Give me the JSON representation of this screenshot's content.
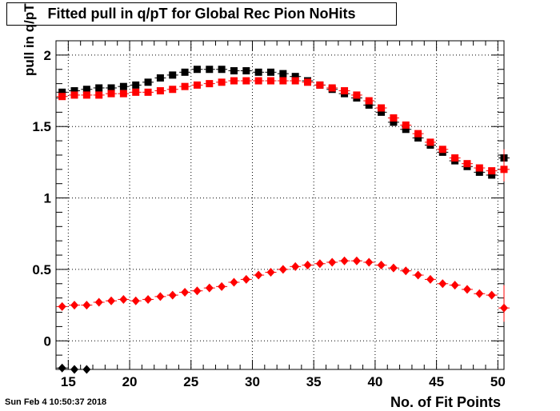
{
  "chart_data": {
    "type": "scatter",
    "title": "Fitted pull in q/pT for Global Rec Pion NoHits",
    "xlabel": "No. of Fit Points",
    "ylabel": "pull in q/pT",
    "xlim": [
      14,
      50.5
    ],
    "ylim": [
      -0.2,
      2.1
    ],
    "xticks": [
      15,
      20,
      25,
      30,
      35,
      40,
      45,
      50
    ],
    "yticks": [
      0,
      0.5,
      1,
      1.5,
      2
    ],
    "grid": true,
    "series": [
      {
        "color": "#000000",
        "marker": "square",
        "x": [
          14.5,
          15.5,
          16.5,
          17.5,
          18.5,
          19.5,
          20.5,
          21.5,
          22.5,
          23.5,
          24.5,
          25.5,
          26.5,
          27.5,
          28.5,
          29.5,
          30.5,
          31.5,
          32.5,
          33.5,
          34.5,
          35.5,
          36.5,
          37.5,
          38.5,
          39.5,
          40.5,
          41.5,
          42.5,
          43.5,
          44.5,
          45.5,
          46.5,
          47.5,
          48.5,
          49.5,
          50.5
        ],
        "y": [
          1.74,
          1.75,
          1.76,
          1.77,
          1.77,
          1.78,
          1.79,
          1.81,
          1.84,
          1.86,
          1.88,
          1.9,
          1.9,
          1.9,
          1.89,
          1.89,
          1.88,
          1.88,
          1.87,
          1.85,
          1.82,
          1.79,
          1.76,
          1.73,
          1.7,
          1.65,
          1.6,
          1.53,
          1.48,
          1.42,
          1.37,
          1.32,
          1.26,
          1.22,
          1.18,
          1.16,
          1.28
        ]
      },
      {
        "color": "#ff0000",
        "marker": "square",
        "x": [
          14.5,
          15.5,
          16.5,
          17.5,
          18.5,
          19.5,
          20.5,
          21.5,
          22.5,
          23.5,
          24.5,
          25.5,
          26.5,
          27.5,
          28.5,
          29.5,
          30.5,
          31.5,
          32.5,
          33.5,
          34.5,
          35.5,
          36.5,
          37.5,
          38.5,
          39.5,
          40.5,
          41.5,
          42.5,
          43.5,
          44.5,
          45.5,
          46.5,
          47.5,
          48.5,
          49.5,
          50.5
        ],
        "y": [
          1.71,
          1.72,
          1.72,
          1.72,
          1.73,
          1.73,
          1.74,
          1.74,
          1.75,
          1.76,
          1.78,
          1.79,
          1.8,
          1.81,
          1.82,
          1.82,
          1.82,
          1.82,
          1.82,
          1.82,
          1.81,
          1.79,
          1.77,
          1.75,
          1.72,
          1.68,
          1.63,
          1.56,
          1.51,
          1.45,
          1.39,
          1.34,
          1.28,
          1.24,
          1.21,
          1.19,
          1.2
        ]
      },
      {
        "color": "#ff0000",
        "marker": "diamond",
        "x": [
          14.5,
          15.5,
          16.5,
          17.5,
          18.5,
          19.5,
          20.5,
          21.5,
          22.5,
          23.5,
          24.5,
          25.5,
          26.5,
          27.5,
          28.5,
          29.5,
          30.5,
          31.5,
          32.5,
          33.5,
          34.5,
          35.5,
          36.5,
          37.5,
          38.5,
          39.5,
          40.5,
          41.5,
          42.5,
          43.5,
          44.5,
          45.5,
          46.5,
          47.5,
          48.5,
          49.5,
          50.5
        ],
        "y": [
          0.24,
          0.25,
          0.25,
          0.27,
          0.28,
          0.29,
          0.28,
          0.29,
          0.31,
          0.32,
          0.34,
          0.35,
          0.37,
          0.38,
          0.41,
          0.43,
          0.46,
          0.48,
          0.5,
          0.52,
          0.53,
          0.54,
          0.55,
          0.56,
          0.56,
          0.55,
          0.53,
          0.51,
          0.49,
          0.46,
          0.43,
          0.4,
          0.39,
          0.36,
          0.33,
          0.32,
          0.23
        ]
      },
      {
        "color": "#000000",
        "marker": "diamond",
        "x": [
          14.5,
          15.5,
          16.5
        ],
        "y": [
          -0.19,
          -0.2,
          -0.21
        ]
      }
    ]
  },
  "timestamp": "Sun Feb  4 10:50:37 2018"
}
